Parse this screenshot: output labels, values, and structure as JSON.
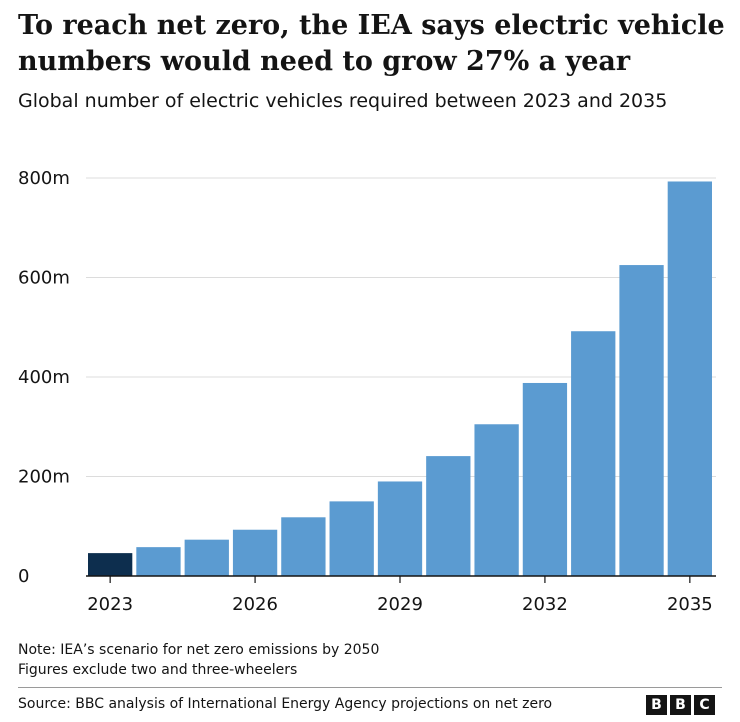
{
  "header": {
    "title": "To reach net zero, the IEA says electric vehicle numbers would need to grow 27% a year",
    "subtitle": "Global number of electric vehicles required between 2023 and 2035"
  },
  "chart_data": {
    "type": "bar",
    "categories": [
      "2023",
      "2024",
      "2025",
      "2026",
      "2027",
      "2028",
      "2029",
      "2030",
      "2031",
      "2032",
      "2033",
      "2034",
      "2035"
    ],
    "values": [
      46,
      58,
      73,
      93,
      118,
      150,
      190,
      241,
      305,
      388,
      492,
      625,
      793
    ],
    "unit": "m",
    "ylim": [
      0,
      800
    ],
    "yticks": [
      0,
      200,
      400,
      600,
      800
    ],
    "ytick_labels": [
      "0",
      "200m",
      "400m",
      "600m",
      "800m"
    ],
    "xtick_labels": [
      "2023",
      "2026",
      "2029",
      "2032",
      "2035"
    ],
    "grid": true,
    "colors": {
      "highlight": "#0d2e4e",
      "bar": "#5b9bd1",
      "grid": "#dcdcdc",
      "axis": "#141414"
    },
    "highlight_index": 0
  },
  "notes": {
    "line1": "Note: IEA’s scenario for net zero emissions by 2050",
    "line2": "Figures exclude two and three-wheelers"
  },
  "footer": {
    "source": "Source: BBC analysis of International Energy Agency projections on net zero",
    "logo_letters": [
      "B",
      "B",
      "C"
    ]
  }
}
